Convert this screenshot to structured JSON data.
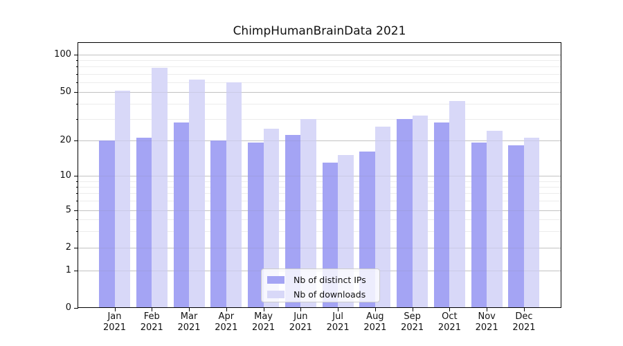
{
  "title": "ChimpHumanBrainData 2021",
  "chart_data": {
    "type": "bar",
    "title": "ChimpHumanBrainData 2021",
    "months": [
      "Jan",
      "Feb",
      "Mar",
      "Apr",
      "May",
      "Jun",
      "Jul",
      "Aug",
      "Sep",
      "Oct",
      "Nov",
      "Dec"
    ],
    "year": "2021",
    "series": [
      {
        "name": "Nb of distinct IPs",
        "color": "#a4a4f4",
        "values": [
          20,
          21,
          28,
          20,
          19,
          22,
          13,
          16,
          30,
          28,
          19,
          18
        ]
      },
      {
        "name": "Nb of downloads",
        "color": "#d8d8f8",
        "values": [
          51,
          78,
          63,
          60,
          25,
          30,
          15,
          26,
          32,
          42,
          24,
          21
        ]
      }
    ],
    "yscale": "symlog",
    "yticks": [
      0,
      1,
      2,
      5,
      10,
      20,
      50,
      100
    ],
    "yminor_gridlines": [
      3,
      4,
      6,
      7,
      8,
      9,
      30,
      40,
      60,
      70,
      80,
      90
    ],
    "ylim": [
      0,
      127
    ],
    "grid": "horizontal",
    "legend_position": "lower center"
  }
}
